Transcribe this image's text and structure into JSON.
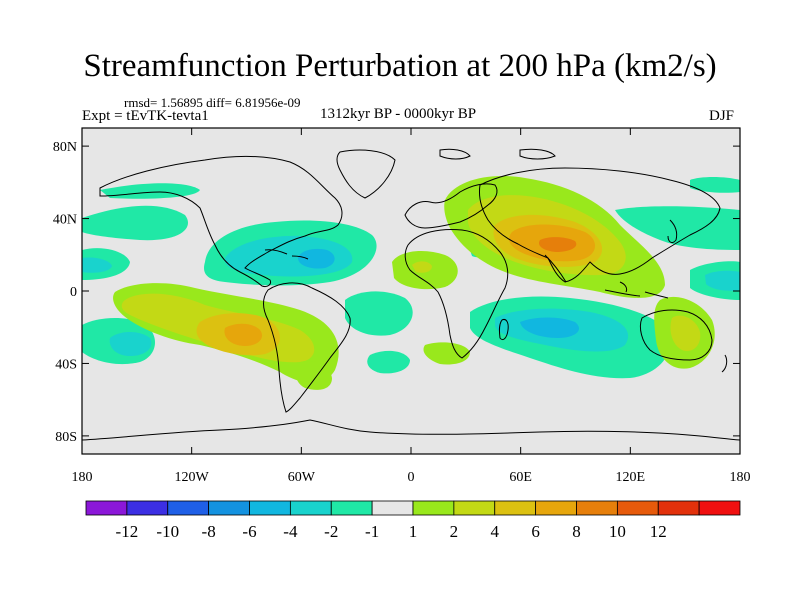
{
  "header": {
    "title": "Streamfunction Perturbation at 200 hPa (km2/s)",
    "stats": "rmsd= 1.56895 diff= 6.81956e-09",
    "experiment": "Expt = tEvTK-tevta1",
    "period": "1312kyr BP - 0000kyr BP",
    "season": "DJF"
  },
  "map": {
    "projection": "cylindrical equidistant",
    "lon_range": [
      -180,
      180
    ],
    "lat_range": [
      -90,
      90
    ],
    "lat_ticks": [
      {
        "value": 80,
        "label": "80N"
      },
      {
        "value": 40,
        "label": "40N"
      },
      {
        "value": 0,
        "label": "0"
      },
      {
        "value": -40,
        "label": "40S"
      },
      {
        "value": -80,
        "label": "80S"
      }
    ],
    "lon_ticks": [
      {
        "value": -180,
        "label": "180"
      },
      {
        "value": -120,
        "label": "120W"
      },
      {
        "value": -60,
        "label": "60W"
      },
      {
        "value": 0,
        "label": "0"
      },
      {
        "value": 60,
        "label": "60E"
      },
      {
        "value": 120,
        "label": "120E"
      },
      {
        "value": 180,
        "label": "180"
      }
    ],
    "background_color": "#e6e6e6"
  },
  "features": [
    {
      "name": "anomaly-asia-high",
      "type": "positive",
      "level": 7,
      "lon": 80,
      "lat": 25
    },
    {
      "name": "anomaly-south-america-high",
      "type": "positive",
      "level": 6,
      "lon": -90,
      "lat": -20
    },
    {
      "name": "anomaly-caribbean-low",
      "type": "negative",
      "level": -4,
      "lon": -50,
      "lat": 20
    },
    {
      "name": "anomaly-indian-ocean-low",
      "type": "negative",
      "level": -4,
      "lon": 75,
      "lat": -20
    },
    {
      "name": "anomaly-south-pacific-low",
      "type": "negative",
      "level": -4,
      "lon": -160,
      "lat": -20
    },
    {
      "name": "anomaly-africa-high",
      "type": "positive",
      "level": 3,
      "lon": 5,
      "lat": 15
    }
  ],
  "colorbar": {
    "colors": [
      "#8b17d8",
      "#3c2fe3",
      "#1f5fe6",
      "#1392e0",
      "#11b7e0",
      "#19d3cd",
      "#20e8a6",
      "#e6e6e6",
      "#99e81c",
      "#c3d915",
      "#dcc111",
      "#e6a60c",
      "#e67f0b",
      "#e65a0b",
      "#e2310b",
      "#f01010"
    ],
    "labels": [
      "-12",
      "-10",
      "-8",
      "-6",
      "-4",
      "-2",
      "-1",
      "1",
      "2",
      "4",
      "6",
      "8",
      "10",
      "12"
    ]
  }
}
